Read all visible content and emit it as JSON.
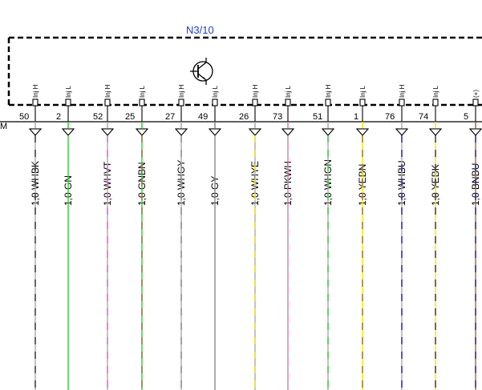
{
  "component": {
    "id": "N3/10",
    "edge_label": "M",
    "title_color": "#1f3fc4",
    "symbol": "transistor-symbol"
  },
  "colors": {
    "WH": "#aaaaaa",
    "BK": "#333333",
    "GN": "#33cc33",
    "VT": "#e060e0",
    "BN": "#9a6a3a",
    "GY": "#888888",
    "YE": "#f2e600",
    "PK": "#f06ab0",
    "BU": "#1c1cc8"
  },
  "pins": [
    {
      "num": "50",
      "func": "Inj H",
      "wire": "1,0 WHBK",
      "base": "WH",
      "stripe": "BK"
    },
    {
      "num": "2",
      "func": "Inj L",
      "wire": "1,0 GN",
      "base": "GN",
      "stripe": ""
    },
    {
      "num": "52",
      "func": "Inj H",
      "wire": "1,0 WHVT",
      "base": "WH",
      "stripe": "VT"
    },
    {
      "num": "25",
      "func": "Inj L",
      "wire": "1,0 GNBN",
      "base": "GN",
      "stripe": "BN"
    },
    {
      "num": "27",
      "func": "Inj H",
      "wire": "1,0 WHGY",
      "base": "WH",
      "stripe": "GY"
    },
    {
      "num": "49",
      "func": "Inj L",
      "wire": "1,0 GY",
      "base": "GY",
      "stripe": ""
    },
    {
      "num": "26",
      "func": "Inj H",
      "wire": "1,0 WHYE",
      "base": "WH",
      "stripe": "YE"
    },
    {
      "num": "73",
      "func": "Inj L",
      "wire": "1,0 PKWH",
      "base": "PK",
      "stripe": "WH"
    },
    {
      "num": "51",
      "func": "Inj H",
      "wire": "1,0 WHGN",
      "base": "WH",
      "stripe": "GN"
    },
    {
      "num": "1",
      "func": "Inj L",
      "wire": "1,0 YEBN",
      "base": "YE",
      "stripe": "BN"
    },
    {
      "num": "76",
      "func": "Inj H",
      "wire": "1,0 WHBU",
      "base": "WH",
      "stripe": "BU"
    },
    {
      "num": "74",
      "func": "Inj L",
      "wire": "1,0 YEBK",
      "base": "YE",
      "stripe": "BK"
    },
    {
      "num": "5",
      "func": "(+)",
      "wire": "1,0 BNBU",
      "base": "BN",
      "stripe": "BU"
    }
  ]
}
